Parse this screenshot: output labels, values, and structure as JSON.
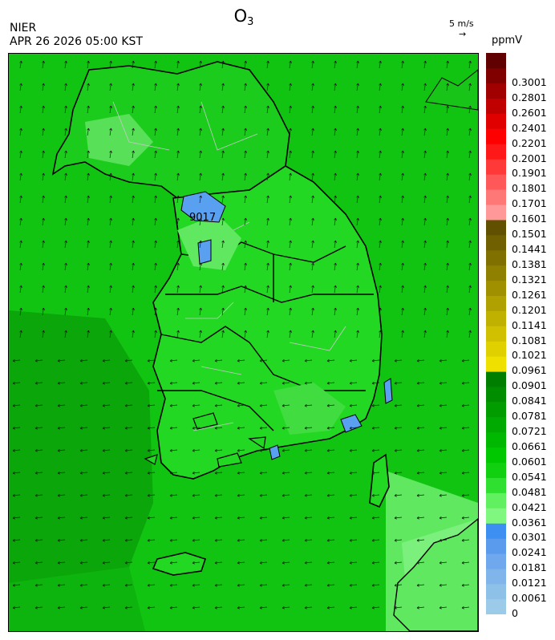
{
  "header": {
    "title_main": "O",
    "title_sub": "3",
    "agency": "NIER",
    "timestamp": "APR 26 2026 05:00 KST",
    "wind_scale_label": "5 m/s",
    "wind_scale_arrow": "→",
    "unit": "ppmV"
  },
  "map": {
    "region": "Korean Peninsula",
    "overlay": "wind-vectors",
    "marker_label": "9017",
    "colors": {
      "sea_dark": "#10b010",
      "land_main": "#20d620",
      "high_light": "#7cf07c",
      "low_blue": "#5aa0f0",
      "border": "#000000",
      "admin_lines": "#c8c8c8"
    }
  },
  "colorbar": {
    "colors": [
      "#9ccbea",
      "#8ec1e8",
      "#7fb5ea",
      "#6fa8ec",
      "#5b9bee",
      "#3d8ff2",
      "#80f880",
      "#60f060",
      "#30e030",
      "#10d010",
      "#00c800",
      "#00b800",
      "#00aa00",
      "#009c00",
      "#008e00",
      "#007e00",
      "#f0e000",
      "#e0d000",
      "#d0c000",
      "#c0b000",
      "#b0a000",
      "#a09000",
      "#908000",
      "#807000",
      "#706000",
      "#605000",
      "#ff9898",
      "#ff7878",
      "#ff5858",
      "#ff3838",
      "#ff1818",
      "#ff0000",
      "#e00000",
      "#c00000",
      "#a00000",
      "#800000",
      "#600000"
    ],
    "labels": [
      "0",
      "0.0061",
      "0.0121",
      "0.0181",
      "0.0241",
      "0.0301",
      "0.0361",
      "0.0421",
      "0.0481",
      "0.0541",
      "0.0601",
      "0.0661",
      "0.0721",
      "0.0781",
      "0.0841",
      "0.0901",
      "0.0961",
      "0.1021",
      "0.1081",
      "0.1141",
      "0.1201",
      "0.1261",
      "0.1321",
      "0.1381",
      "0.1441",
      "0.1501",
      "0.1601",
      "0.1701",
      "0.1801",
      "0.1901",
      "0.2001",
      "0.2201",
      "0.2401",
      "0.2601",
      "0.2801",
      "0.3001"
    ]
  }
}
